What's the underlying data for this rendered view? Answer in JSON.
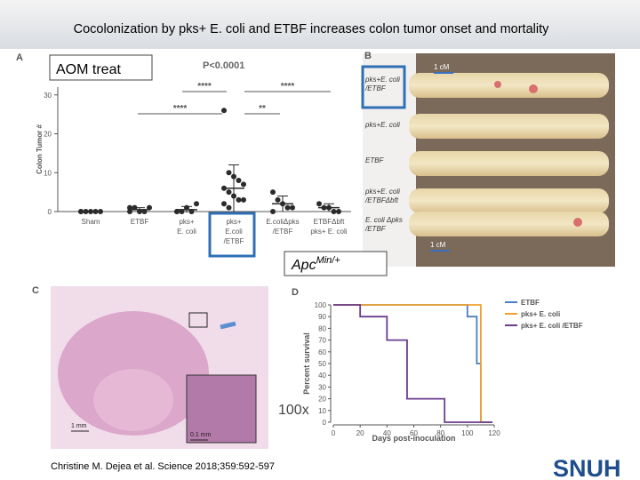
{
  "title": "Cocolonization by pks+ E. coli and ETBF increases colon tumor onset and mortality",
  "citation": "Christine M. Dejea et al. Science 2018;359:592-597",
  "logo": "SNUH",
  "callouts": {
    "treatment": "AOM treat",
    "model": "Apc",
    "model_sup": "Min/+",
    "magnification": "100x"
  },
  "panel_a": {
    "letter": "A",
    "pvalue": "P<0.0001",
    "ylabel": "Colon Tumor #",
    "ylim": [
      0,
      32
    ],
    "yticks": [
      0,
      10,
      20,
      30
    ],
    "categories": [
      [
        "Sham"
      ],
      [
        "ETBF"
      ],
      [
        "pks+",
        "E. coli"
      ],
      [
        "pks+",
        "E.coli",
        "/ETBF"
      ],
      [
        "E.coliΔpks",
        "/ETBF"
      ],
      [
        "ETBFΔbft",
        "pks+ E. coli"
      ]
    ],
    "points": [
      [
        0,
        0,
        0,
        0,
        0,
        0
      ],
      [
        1,
        1,
        0,
        0,
        1,
        0
      ],
      [
        0,
        0,
        1,
        0,
        2,
        0
      ],
      [
        26,
        10,
        9,
        8,
        7,
        6,
        5,
        4,
        3,
        3,
        2,
        1
      ],
      [
        5,
        3,
        2,
        1,
        1,
        0
      ],
      [
        2,
        1,
        1,
        0,
        0
      ]
    ],
    "means": [
      0,
      0.5,
      0.5,
      6,
      2,
      1
    ],
    "sd": [
      0,
      0.5,
      0.8,
      6,
      2,
      1
    ],
    "significance": [
      "****",
      "****",
      "****",
      "**"
    ],
    "color": "#2b2b2b"
  },
  "panel_b": {
    "letter": "B",
    "labels": [
      [
        "pks+E. coli",
        "/ETBF"
      ],
      [
        "pks+E. coli"
      ],
      [
        "ETBF"
      ],
      [
        "pks+E. coli",
        "/ETBFΔbft"
      ],
      [
        "E. coli Δpks",
        "/ETBF"
      ]
    ],
    "scales": [
      "1 cM",
      "1 cM"
    ]
  },
  "panel_c": {
    "letter": "C",
    "scales": [
      "1 mm",
      "0.1 mm"
    ]
  },
  "panel_d": {
    "letter": "D",
    "type": "line",
    "ylabel": "Percent survival",
    "xlabel": "Days post-inoculation",
    "xlim": [
      0,
      120
    ],
    "xticks": [
      0,
      20,
      40,
      60,
      80,
      100,
      120
    ],
    "ylim": [
      0,
      100
    ],
    "yticks": [
      0,
      10,
      20,
      30,
      40,
      50,
      60,
      70,
      80,
      90,
      100
    ],
    "step": true,
    "series": [
      {
        "name": "ETBF",
        "color": "#4a7fc1",
        "x": [
          0,
          100,
          107,
          110
        ],
        "values": [
          100,
          90,
          50,
          0
        ]
      },
      {
        "name": "pks+ E. coli",
        "color": "#f0a030",
        "x": [
          0,
          110
        ],
        "values": [
          100,
          0
        ]
      },
      {
        "name": "pks+ E. coli /ETBF",
        "color": "#6a3d8f",
        "x": [
          0,
          20,
          40,
          55,
          83
        ],
        "values": [
          100,
          90,
          70,
          20,
          0
        ]
      }
    ]
  }
}
